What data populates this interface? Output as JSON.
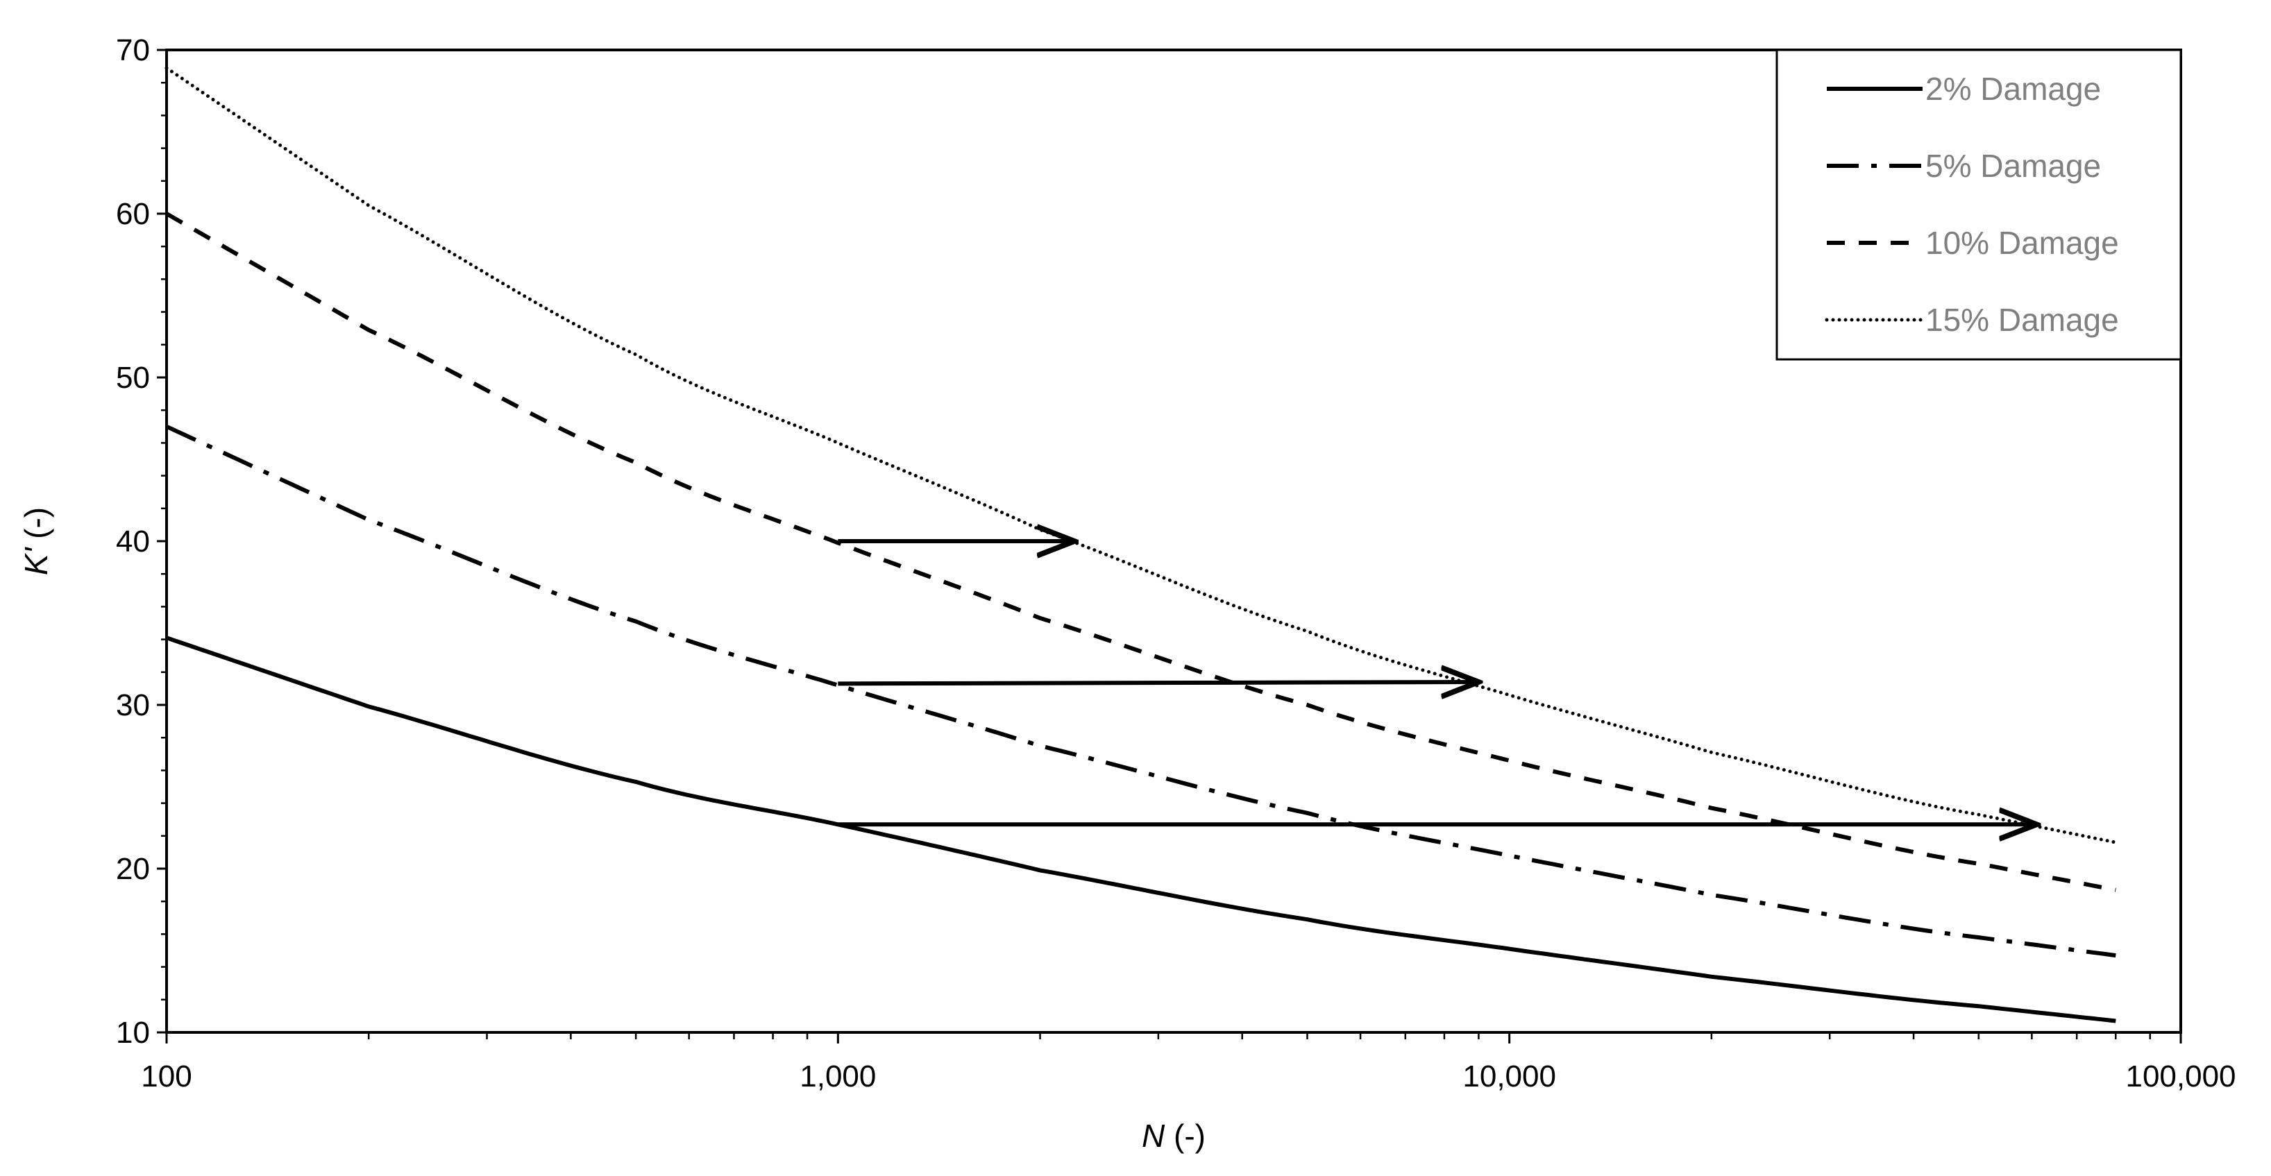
{
  "chart_data": {
    "type": "line",
    "x_scale": "log",
    "xlim": [
      100,
      100000
    ],
    "ylim": [
      10,
      70
    ],
    "x_ticks": [
      100,
      1000,
      10000,
      100000
    ],
    "x_tick_labels": [
      "100",
      "1,000",
      "10,000",
      "100,000"
    ],
    "y_ticks": [
      10,
      20,
      30,
      40,
      50,
      60,
      70
    ],
    "y_tick_labels": [
      "10",
      "20",
      "30",
      "40",
      "50",
      "60",
      "70"
    ],
    "xlabel_var": "N",
    "xlabel_unit": " (-)",
    "ylabel_var": "K'",
    "ylabel_unit": " (-)",
    "grid": false,
    "legend_position": "top-right",
    "series": [
      {
        "name": "2% Damage",
        "dash": "solid",
        "x": [
          100,
          200,
          500,
          1000,
          2000,
          5000,
          10000,
          20000,
          50000,
          80000
        ],
        "y": [
          34.1,
          29.9,
          25.3,
          22.7,
          19.9,
          16.9,
          15.1,
          13.4,
          11.6,
          10.7
        ]
      },
      {
        "name": "5% Damage",
        "dash": "dash-dot",
        "x": [
          100,
          200,
          500,
          1000,
          2000,
          5000,
          10000,
          20000,
          50000,
          80000
        ],
        "y": [
          47.0,
          41.3,
          35.1,
          31.2,
          27.5,
          23.4,
          20.8,
          18.4,
          15.8,
          14.7
        ]
      },
      {
        "name": "10% Damage",
        "dash": "dashed",
        "x": [
          100,
          200,
          500,
          1000,
          2000,
          5000,
          10000,
          20000,
          50000,
          80000
        ],
        "y": [
          60.0,
          52.9,
          44.8,
          39.9,
          35.3,
          30.0,
          26.6,
          23.7,
          20.3,
          18.7
        ]
      },
      {
        "name": "15% Damage",
        "dash": "dotted",
        "x": [
          100,
          200,
          500,
          1000,
          2000,
          5000,
          10000,
          20000,
          50000,
          80000
        ],
        "y": [
          68.9,
          60.5,
          51.4,
          46.0,
          40.7,
          34.5,
          30.6,
          27.1,
          23.3,
          21.6
        ]
      }
    ],
    "arrows": [
      {
        "from": [
          1000,
          40.0
        ],
        "to": [
          2250,
          40.0
        ]
      },
      {
        "from": [
          1000,
          31.3
        ],
        "to": [
          9000,
          31.4
        ]
      },
      {
        "from": [
          1000,
          22.7
        ],
        "to": [
          61000,
          22.7
        ]
      }
    ]
  }
}
